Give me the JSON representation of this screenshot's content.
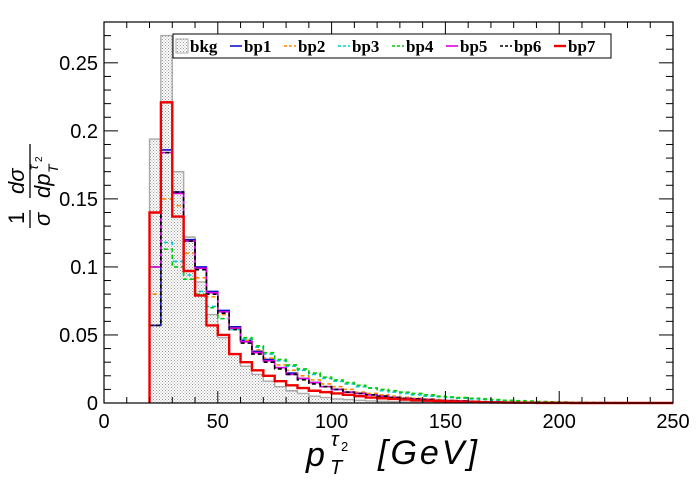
{
  "chart_data": {
    "type": "histogram",
    "title": "",
    "xlabel_main": "p",
    "xlabel_sub": "T",
    "xlabel_sup": "τ",
    "xlabel_sup_sub": "2",
    "xlabel_unit": "[GeV]",
    "ylabel_num": "1",
    "ylabel_den": "σ",
    "ylabel_frac_num": "dσ",
    "ylabel_frac_den": "dp",
    "ylabel_frac_den_sub": "T",
    "ylabel_frac_den_sup": "τ",
    "ylabel_frac_den_sup_sub": "2",
    "xlim": [
      0,
      250
    ],
    "ylim": [
      0,
      0.28
    ],
    "bin_width": 5,
    "bin_start": 20,
    "x_ticks": [
      0,
      50,
      100,
      150,
      200,
      250
    ],
    "x_tick_labels": [
      "0",
      "50",
      "100",
      "150",
      "200",
      "250"
    ],
    "y_ticks": [
      0,
      0.05,
      0.1,
      0.15,
      0.2,
      0.25
    ],
    "y_tick_labels": [
      "0",
      "0.05",
      "0.1",
      "0.15",
      "0.2",
      "0.25"
    ],
    "legend_position": "top",
    "series": [
      {
        "name": "bkg",
        "color": "#aaaaaa",
        "style": "filled-hatch",
        "values": [
          0.194,
          0.27,
          0.17,
          0.122,
          0.089,
          0.065,
          0.048,
          0.036,
          0.027,
          0.021,
          0.016,
          0.012,
          0.009,
          0.007,
          0.005,
          0.004,
          0.003,
          0.0025,
          0.002,
          0.0015,
          0.0012,
          0.001,
          0.0008,
          0.0006,
          0.0005,
          0.0004,
          0.0003,
          0.0002,
          0.0002,
          0.0001,
          0.0001,
          0.0001,
          0.0001,
          0.0001,
          0.0001,
          0,
          0,
          0,
          0,
          0,
          0,
          0,
          0,
          0,
          0,
          0
        ]
      },
      {
        "name": "bp1",
        "color": "#1111cc",
        "style": "solid",
        "values": [
          0.057,
          0.186,
          0.155,
          0.12,
          0.1,
          0.082,
          0.068,
          0.056,
          0.046,
          0.038,
          0.032,
          0.026,
          0.022,
          0.018,
          0.015,
          0.012,
          0.01,
          0.008,
          0.007,
          0.006,
          0.005,
          0.004,
          0.0035,
          0.003,
          0.0025,
          0.002,
          0.0017,
          0.0014,
          0.0011,
          0.0009,
          0.0007,
          0.0005,
          0.0004,
          0.0003,
          0.0002,
          0.0002,
          0.0001,
          0.0001,
          0.0001,
          0.0001,
          0,
          0,
          0,
          0,
          0,
          0
        ]
      },
      {
        "name": "bp2",
        "color": "#ff8800",
        "style": "dash",
        "values": [
          0.08,
          0.15,
          0.145,
          0.11,
          0.092,
          0.078,
          0.065,
          0.055,
          0.046,
          0.039,
          0.033,
          0.028,
          0.024,
          0.02,
          0.017,
          0.014,
          0.012,
          0.01,
          0.008,
          0.007,
          0.006,
          0.005,
          0.0042,
          0.0035,
          0.003,
          0.0025,
          0.002,
          0.0017,
          0.0014,
          0.0011,
          0.0009,
          0.0007,
          0.0005,
          0.0004,
          0.0003,
          0.0002,
          0.0002,
          0.0001,
          0.0001,
          0.0001,
          0,
          0,
          0,
          0,
          0,
          0
        ]
      },
      {
        "name": "bp3",
        "color": "#00cccc",
        "style": "dash",
        "values": [
          0.1,
          0.118,
          0.104,
          0.094,
          0.082,
          0.071,
          0.062,
          0.054,
          0.047,
          0.041,
          0.036,
          0.031,
          0.027,
          0.024,
          0.021,
          0.018,
          0.016,
          0.014,
          0.012,
          0.011,
          0.009,
          0.008,
          0.007,
          0.006,
          0.005,
          0.0045,
          0.004,
          0.0035,
          0.003,
          0.0025,
          0.002,
          0.0017,
          0.0014,
          0.0011,
          0.0009,
          0.0007,
          0.0005,
          0.0004,
          0.0003,
          0.0002,
          0.0002,
          0.0001,
          0.0001,
          0.0001,
          0,
          0
        ]
      },
      {
        "name": "bp4",
        "color": "#00cc00",
        "style": "dash",
        "values": [
          0.1,
          0.113,
          0.1,
          0.091,
          0.08,
          0.07,
          0.062,
          0.055,
          0.048,
          0.042,
          0.037,
          0.032,
          0.028,
          0.025,
          0.022,
          0.019,
          0.017,
          0.015,
          0.013,
          0.011,
          0.01,
          0.009,
          0.008,
          0.007,
          0.006,
          0.005,
          0.0045,
          0.004,
          0.0035,
          0.003,
          0.0025,
          0.002,
          0.0017,
          0.0014,
          0.0011,
          0.0009,
          0.0007,
          0.0005,
          0.0004,
          0.0003,
          0.0002,
          0.0002,
          0.0001,
          0.0001,
          0,
          0
        ]
      },
      {
        "name": "bp5",
        "color": "#dd00dd",
        "style": "solid",
        "values": [
          0.1,
          0.184,
          0.154,
          0.119,
          0.099,
          0.081,
          0.067,
          0.055,
          0.045,
          0.037,
          0.031,
          0.026,
          0.021,
          0.018,
          0.015,
          0.012,
          0.01,
          0.008,
          0.007,
          0.006,
          0.005,
          0.004,
          0.0035,
          0.003,
          0.0025,
          0.002,
          0.0017,
          0.0014,
          0.0011,
          0.0009,
          0.0007,
          0.0005,
          0.0004,
          0.0003,
          0.0002,
          0.0002,
          0.0001,
          0.0001,
          0.0001,
          0.0001,
          0,
          0,
          0,
          0,
          0,
          0
        ]
      },
      {
        "name": "bp6",
        "color": "#000000",
        "style": "dash",
        "values": [
          0.057,
          0.184,
          0.155,
          0.119,
          0.098,
          0.08,
          0.066,
          0.054,
          0.044,
          0.036,
          0.03,
          0.025,
          0.021,
          0.017,
          0.014,
          0.012,
          0.01,
          0.008,
          0.007,
          0.006,
          0.005,
          0.004,
          0.0035,
          0.003,
          0.0025,
          0.002,
          0.0017,
          0.0014,
          0.0011,
          0.0009,
          0.0007,
          0.0005,
          0.0004,
          0.0003,
          0.0002,
          0.0002,
          0.0001,
          0.0001,
          0.0001,
          0.0001,
          0,
          0,
          0,
          0,
          0,
          0
        ]
      },
      {
        "name": "bp7",
        "color": "#ee0000",
        "style": "solid-thick",
        "values": [
          0.14,
          0.221,
          0.137,
          0.097,
          0.079,
          0.057,
          0.05,
          0.036,
          0.03,
          0.024,
          0.02,
          0.016,
          0.013,
          0.011,
          0.009,
          0.008,
          0.007,
          0.006,
          0.005,
          0.004,
          0.0035,
          0.003,
          0.0025,
          0.002,
          0.0017,
          0.0014,
          0.0011,
          0.0009,
          0.0007,
          0.0005,
          0.0004,
          0.0003,
          0.0002,
          0.0002,
          0.0001,
          0.0001,
          0.0001,
          0,
          0,
          0,
          0,
          0,
          0,
          0,
          0,
          0
        ]
      }
    ]
  }
}
